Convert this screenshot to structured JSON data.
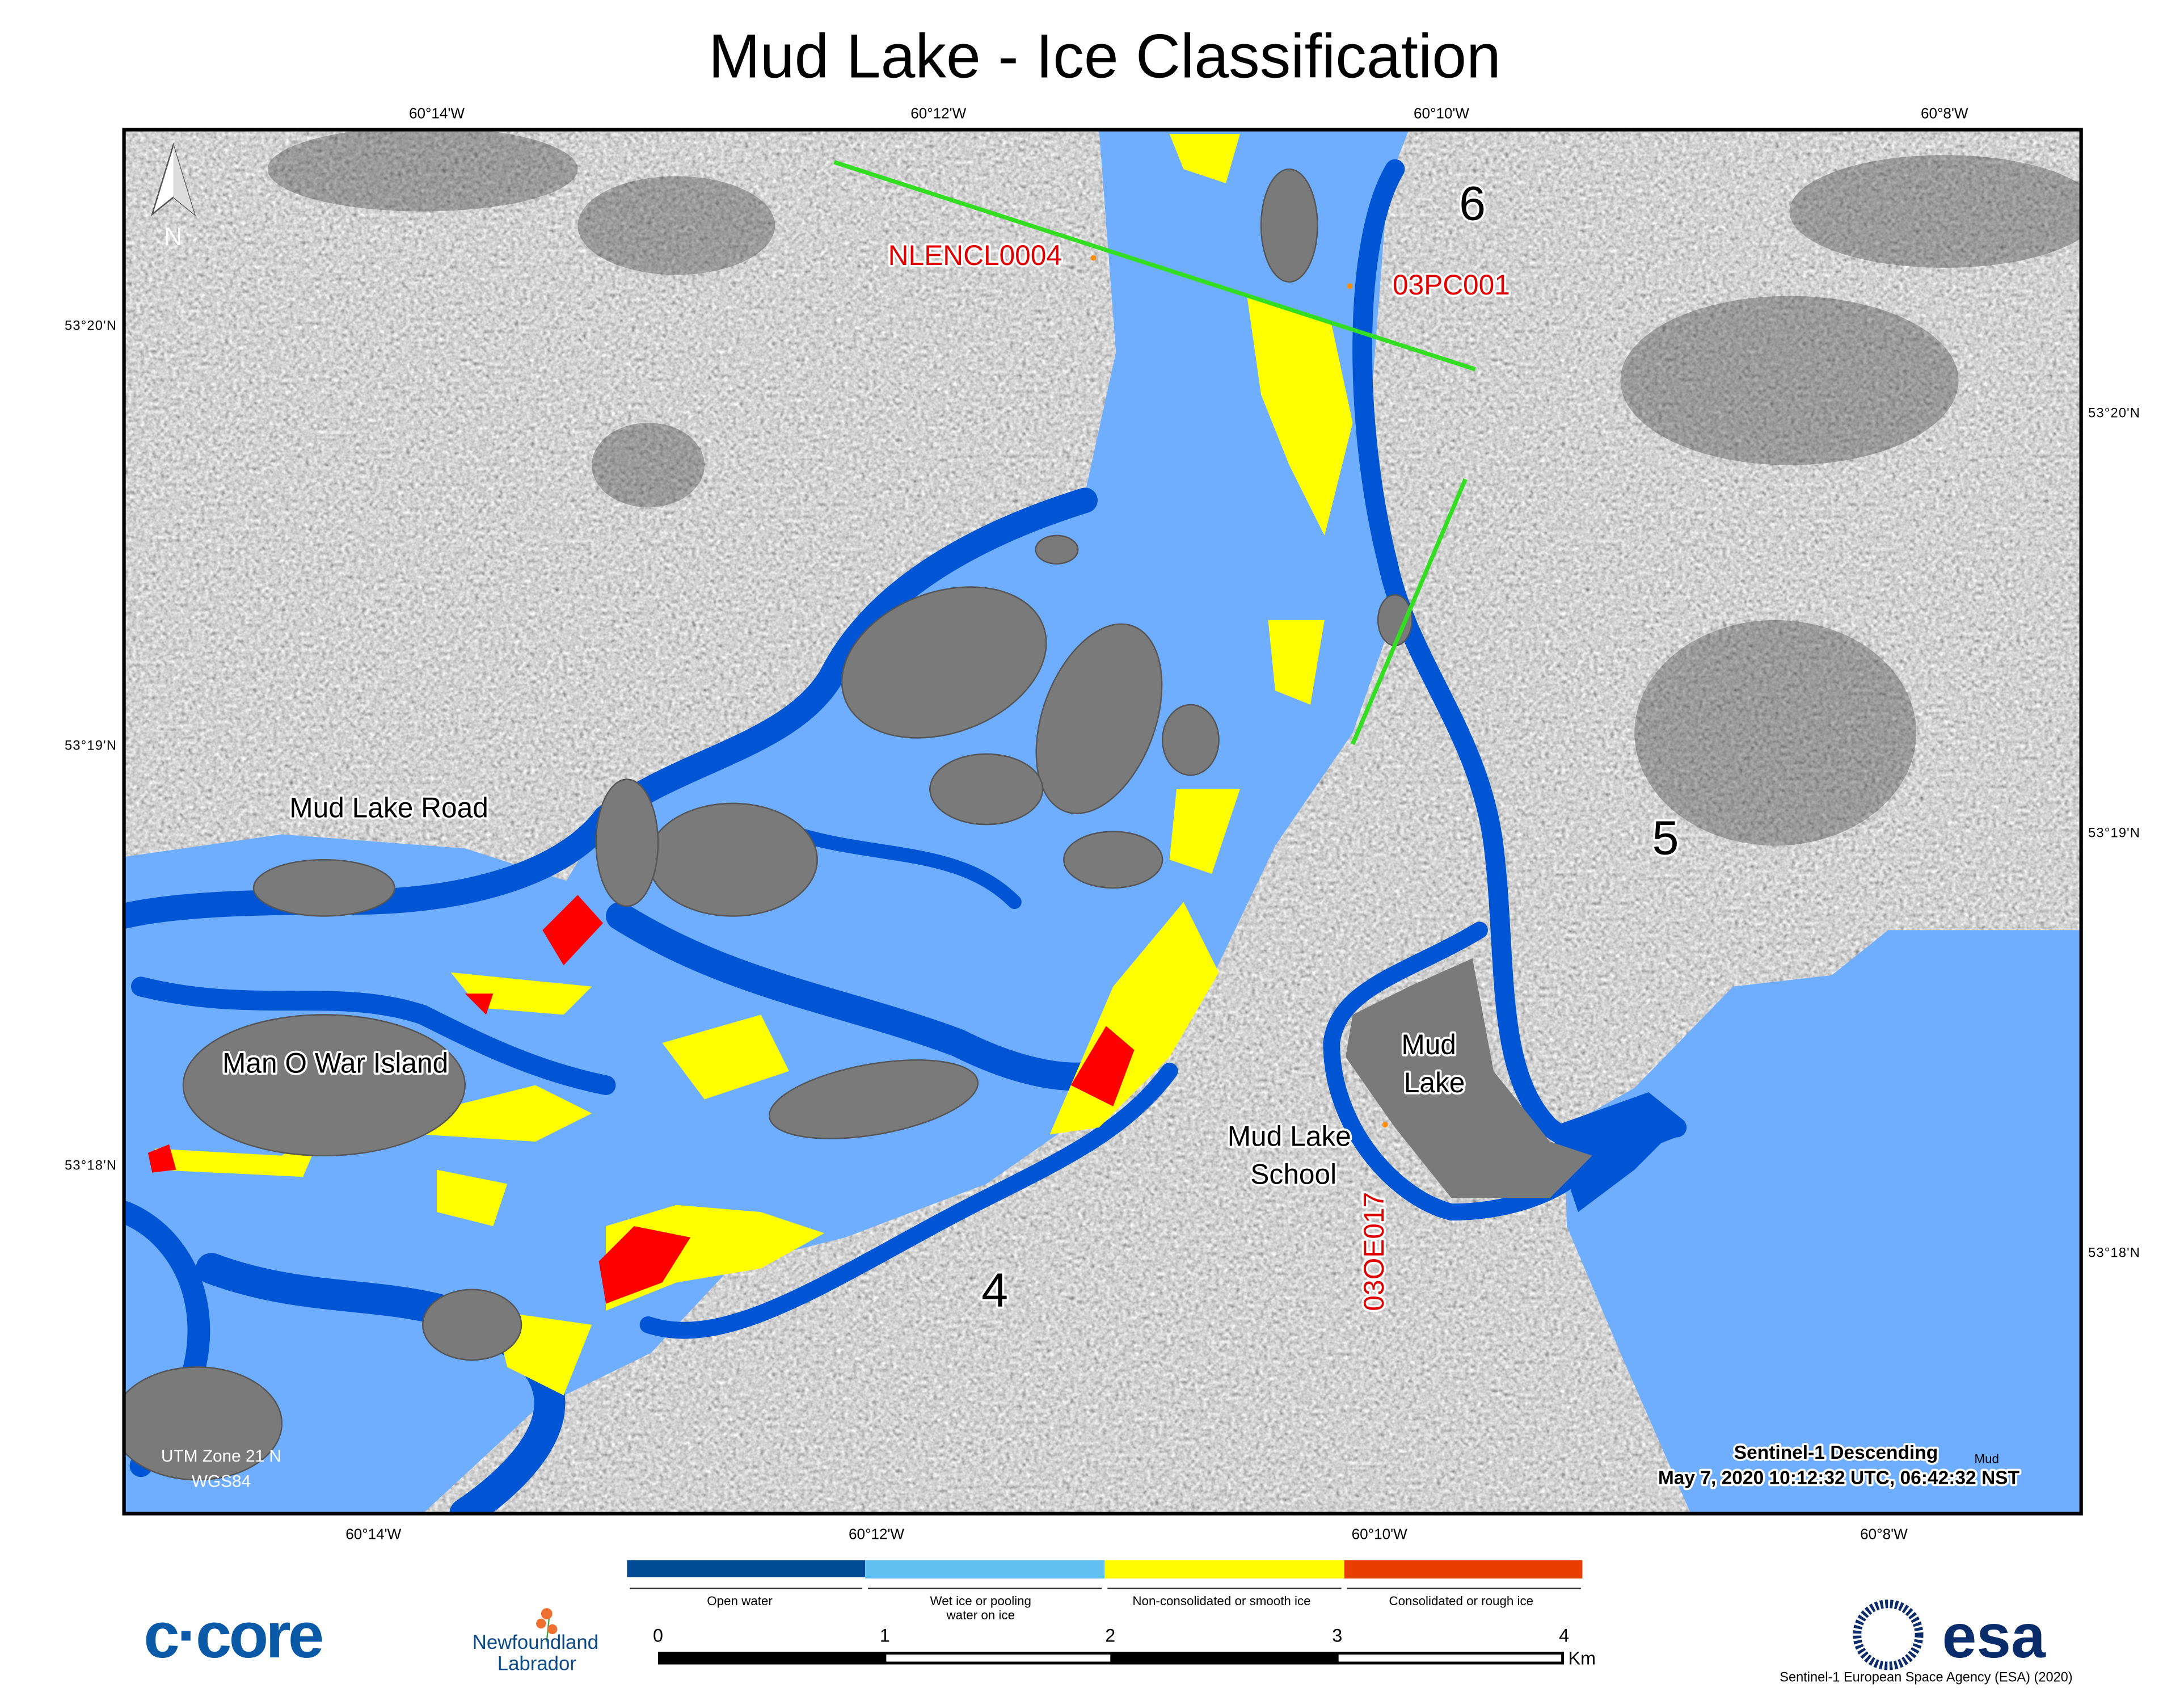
{
  "title": "Mud Lake - Ice Classification",
  "graticule": {
    "top_lon": [
      "60°14'W",
      "60°12'W",
      "60°10'W",
      "60°8'W"
    ],
    "bottom_lon": [
      "60°14'W",
      "60°12'W",
      "60°10'W",
      "60°8'W"
    ],
    "left_lat": [
      "53°20'N",
      "53°19'N",
      "53°18'N"
    ],
    "right_lat": [
      "53°20'N",
      "53°19'N",
      "53°18'N"
    ]
  },
  "map_labels": {
    "north": "N",
    "mud_lake_road": "Mud Lake Road",
    "man_o_war_island": "Man O War Island",
    "mud_lake_line1": "Mud",
    "mud_lake_line2": "Lake",
    "school_line1": "Mud Lake",
    "school_line2": "School",
    "zone4": "4",
    "zone5": "5",
    "zone6": "6",
    "station_nlencl": "NLENCL0004",
    "station_03pc": "03PC001",
    "station_03oe": "03OE017",
    "projection_line1": "UTM Zone 21 N",
    "projection_line2": "WGS84",
    "sensor": "Sentinel-1 Descending",
    "sensor_note": "Mud",
    "acquisition": "May 7, 2020 10:12:32 UTC, 06:42:32 NST"
  },
  "legend": {
    "classes": [
      {
        "label": "Open water",
        "color": "#004b93"
      },
      {
        "label_line1": "Wet ice or pooling",
        "label_line2": "water on ice",
        "color": "#62bff2"
      },
      {
        "label": "Non-consolidated or smooth ice",
        "color": "#fffb00"
      },
      {
        "label": "Consolidated or rough ice",
        "color": "#ea3e00"
      }
    ]
  },
  "map_colors": {
    "open_water": "#0055d4",
    "wet_ice": "#6faeff",
    "smooth_ice": "#ffff00",
    "rough_ice": "#ff0000",
    "transect": "#33dd22"
  },
  "scale_bar": {
    "ticks": [
      "0",
      "1",
      "2",
      "3",
      "4"
    ],
    "unit": "Km"
  },
  "logos": {
    "ccore": "c·core",
    "nl_line1": "Newfoundland",
    "nl_line2": "Labrador",
    "esa": "esa"
  },
  "credit": "Sentinel-1 European Space Agency (ESA) (2020)"
}
